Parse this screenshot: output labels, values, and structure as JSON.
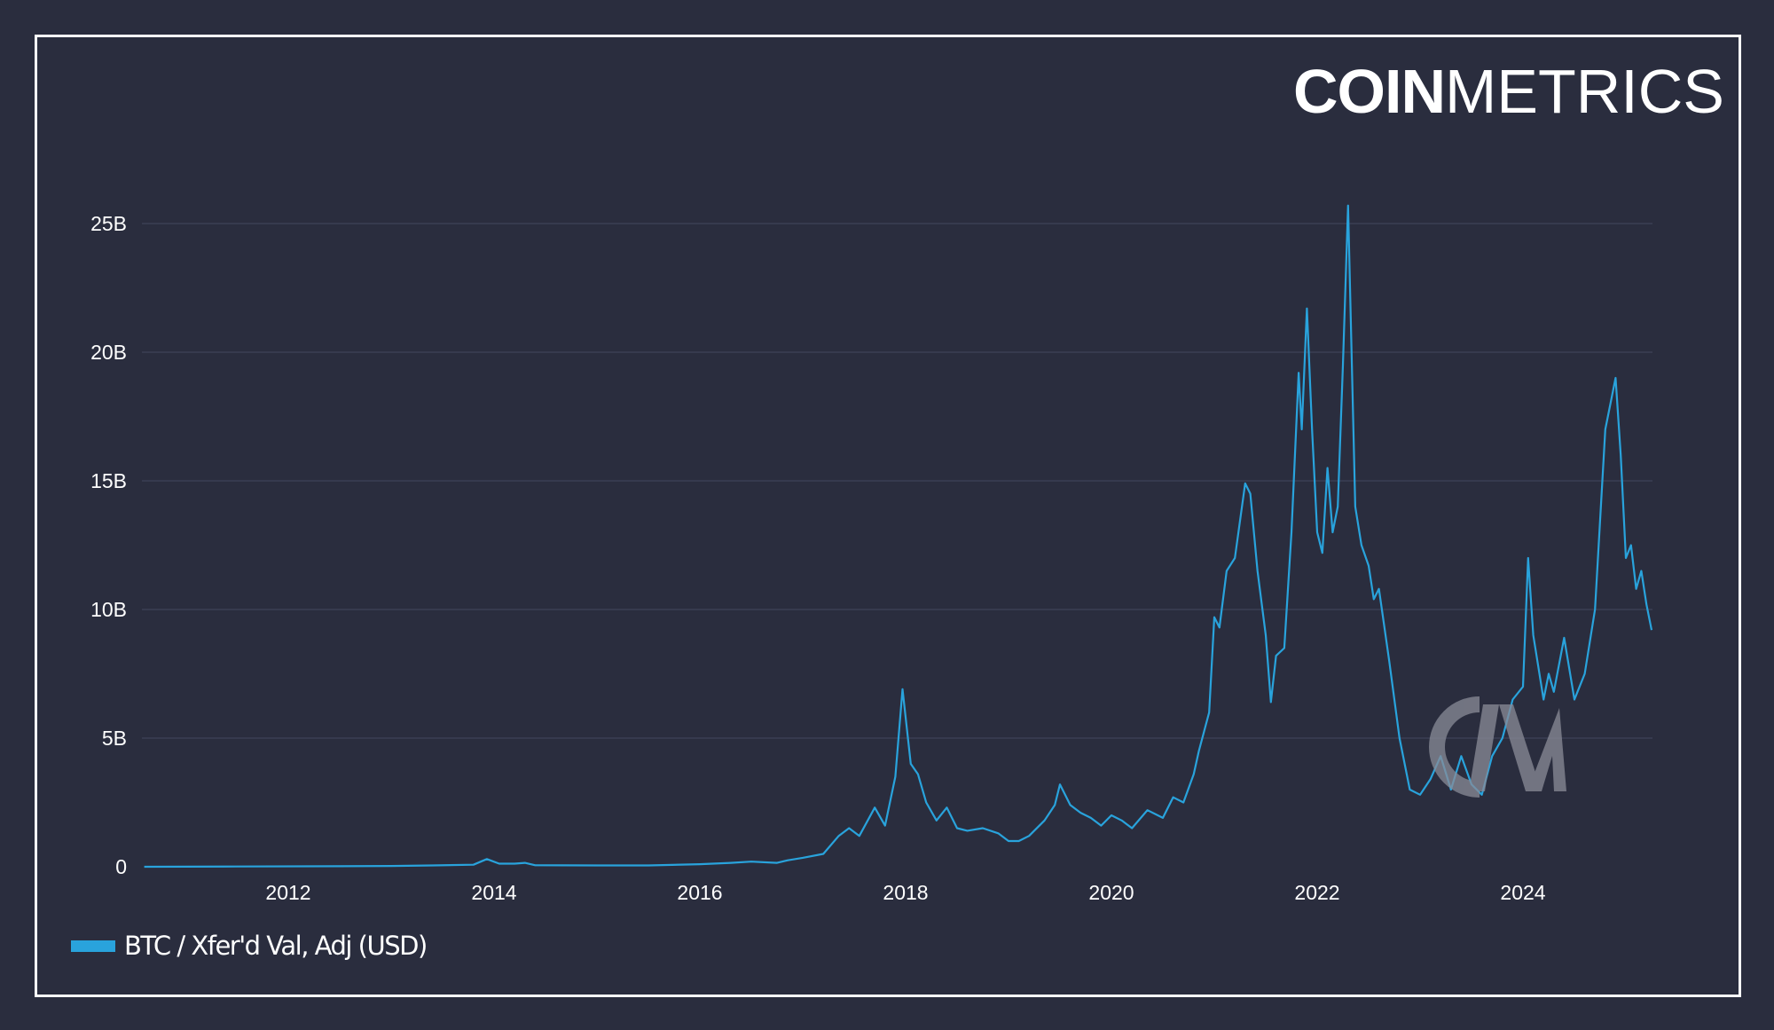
{
  "brand": {
    "logo_bold": "COIN",
    "logo_thin": "METRICS",
    "watermark": "CM"
  },
  "colors": {
    "background": "#2a2d3e",
    "frame": "#ffffff",
    "series": "#29a3dc",
    "grid": "#363a4e",
    "watermark": "#8a8c98"
  },
  "legend": {
    "label": "BTC / Xfer'd Val, Adj (USD)"
  },
  "chart_data": {
    "type": "line",
    "title": "",
    "xlabel": "",
    "ylabel": "",
    "ylim": [
      0,
      25
    ],
    "y_unit": "B USD",
    "grid": true,
    "legend_position": "bottom-left",
    "y_ticks": [
      "0",
      "5B",
      "10B",
      "15B",
      "20B",
      "25B"
    ],
    "y_tick_values": [
      0,
      5,
      10,
      15,
      20,
      25
    ],
    "x_ticks": [
      "2012",
      "2014",
      "2016",
      "2018",
      "2020",
      "2022",
      "2024"
    ],
    "x_tick_values": [
      2012,
      2014,
      2016,
      2018,
      2020,
      2022,
      2024
    ],
    "xlim": [
      2010.6,
      2025.3
    ],
    "series": [
      {
        "name": "BTC / Xfer'd Val, Adj (USD)",
        "x": [
          2010.6,
          2011.5,
          2012.5,
          2013.0,
          2013.4,
          2013.8,
          2013.93,
          2014.05,
          2014.2,
          2014.3,
          2014.4,
          2015.0,
          2015.5,
          2016.0,
          2016.3,
          2016.5,
          2016.75,
          2016.85,
          2017.0,
          2017.2,
          2017.35,
          2017.45,
          2017.55,
          2017.7,
          2017.8,
          2017.9,
          2017.97,
          2018.05,
          2018.12,
          2018.2,
          2018.3,
          2018.4,
          2018.5,
          2018.6,
          2018.75,
          2018.9,
          2019.0,
          2019.1,
          2019.2,
          2019.35,
          2019.45,
          2019.5,
          2019.6,
          2019.7,
          2019.8,
          2019.9,
          2020.0,
          2020.1,
          2020.2,
          2020.35,
          2020.5,
          2020.6,
          2020.7,
          2020.8,
          2020.85,
          2020.95,
          2021.0,
          2021.05,
          2021.12,
          2021.2,
          2021.3,
          2021.35,
          2021.42,
          2021.5,
          2021.55,
          2021.6,
          2021.68,
          2021.75,
          2021.82,
          2021.85,
          2021.9,
          2021.95,
          2022.0,
          2022.05,
          2022.1,
          2022.15,
          2022.2,
          2022.25,
          2022.3,
          2022.37,
          2022.43,
          2022.5,
          2022.55,
          2022.6,
          2022.7,
          2022.8,
          2022.9,
          2023.0,
          2023.1,
          2023.2,
          2023.3,
          2023.4,
          2023.5,
          2023.6,
          2023.7,
          2023.8,
          2023.9,
          2024.0,
          2024.05,
          2024.1,
          2024.2,
          2024.25,
          2024.3,
          2024.4,
          2024.5,
          2024.6,
          2024.7,
          2024.8,
          2024.9,
          2024.95,
          2025.0,
          2025.05,
          2025.1,
          2025.15,
          2025.2,
          2025.25
        ],
        "values": [
          0.0,
          0.01,
          0.02,
          0.03,
          0.05,
          0.08,
          0.3,
          0.12,
          0.12,
          0.15,
          0.06,
          0.05,
          0.05,
          0.1,
          0.15,
          0.2,
          0.15,
          0.25,
          0.35,
          0.5,
          1.2,
          1.5,
          1.2,
          2.3,
          1.6,
          3.5,
          6.9,
          4.0,
          3.6,
          2.5,
          1.8,
          2.3,
          1.5,
          1.4,
          1.5,
          1.3,
          1.0,
          1.0,
          1.2,
          1.8,
          2.4,
          3.2,
          2.4,
          2.1,
          1.9,
          1.6,
          2.0,
          1.8,
          1.5,
          2.2,
          1.9,
          2.7,
          2.5,
          3.6,
          4.5,
          6.0,
          9.7,
          9.3,
          11.5,
          12.0,
          14.9,
          14.5,
          11.5,
          9.0,
          6.4,
          8.2,
          8.5,
          13.0,
          19.2,
          17.0,
          21.7,
          17.0,
          13.0,
          12.2,
          15.5,
          13.0,
          14.0,
          19.5,
          25.7,
          14.0,
          12.5,
          11.7,
          10.4,
          10.8,
          8.0,
          5.0,
          3.0,
          2.8,
          3.4,
          4.3,
          3.0,
          4.3,
          3.2,
          2.8,
          4.3,
          5.0,
          6.5,
          7.0,
          12.0,
          9.0,
          6.5,
          7.5,
          6.8,
          8.9,
          6.5,
          7.5,
          10.0,
          17.0,
          19.0,
          16.0,
          12.0,
          12.5,
          10.8,
          11.5,
          10.2,
          9.2
        ]
      }
    ]
  }
}
